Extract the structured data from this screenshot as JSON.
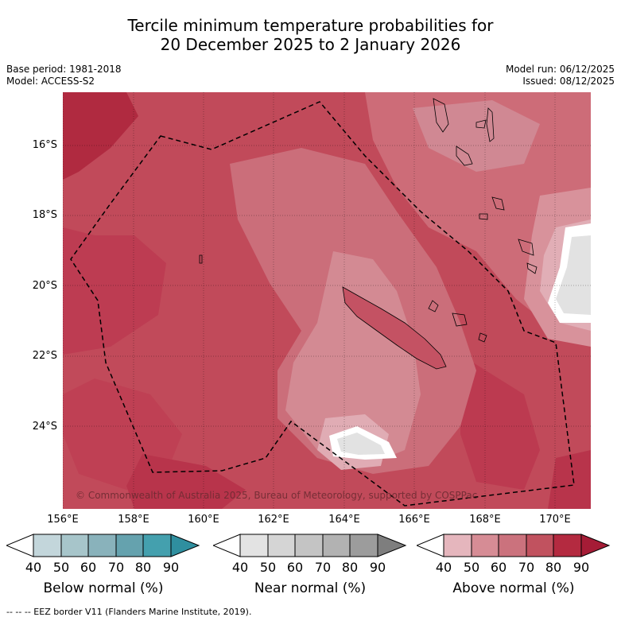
{
  "header": {
    "title_line1": "Tercile minimum temperature probabilities for",
    "title_line2": "20 December 2025 to 2 January 2026",
    "base_period": "Base period: 1981-2018",
    "model": "Model: ACCESS-S2",
    "model_run": "Model run: 06/12/2025",
    "issued": "Issued: 08/12/2025"
  },
  "map": {
    "copyright": "© Commonwealth of Australia 2025, Bureau of Meteorology, supported by COSPPac",
    "lat_labels": [
      "16°S",
      "18°S",
      "20°S",
      "22°S",
      "24°S"
    ],
    "lon_labels": [
      "156°E",
      "158°E",
      "160°E",
      "162°E",
      "164°E",
      "166°E",
      "168°E",
      "170°E"
    ],
    "extent": {
      "lon_min": 155.97,
      "lon_max": 171.0,
      "lat_max": -14.8,
      "lat_min": -26.65
    }
  },
  "legends": [
    {
      "name": "below",
      "title": "Below normal (%)",
      "ticks": [
        "40",
        "50",
        "60",
        "70",
        "80",
        "90"
      ],
      "colors": [
        "#ffffff",
        "#c3d6db",
        "#a7c5ca",
        "#89b2bb",
        "#65a2ae",
        "#44a0ae",
        "#2f8f9f"
      ]
    },
    {
      "name": "near",
      "title": "Near normal (%)",
      "ticks": [
        "40",
        "50",
        "60",
        "70",
        "80",
        "90"
      ],
      "colors": [
        "#ffffff",
        "#e3e3e3",
        "#d5d5d5",
        "#c4c4c4",
        "#b2b2b2",
        "#9c9c9c",
        "#7e7e7e"
      ]
    },
    {
      "name": "above",
      "title": "Above normal (%)",
      "ticks": [
        "40",
        "50",
        "60",
        "70",
        "80",
        "90"
      ],
      "colors": [
        "#ffffff",
        "#e5b6bd",
        "#d68c95",
        "#cb727d",
        "#c1525f",
        "#b42a40",
        "#a51c36"
      ]
    }
  ],
  "footer": "--  --  -- EEZ border V11 (Flanders Marine Institute, 2019)."
}
